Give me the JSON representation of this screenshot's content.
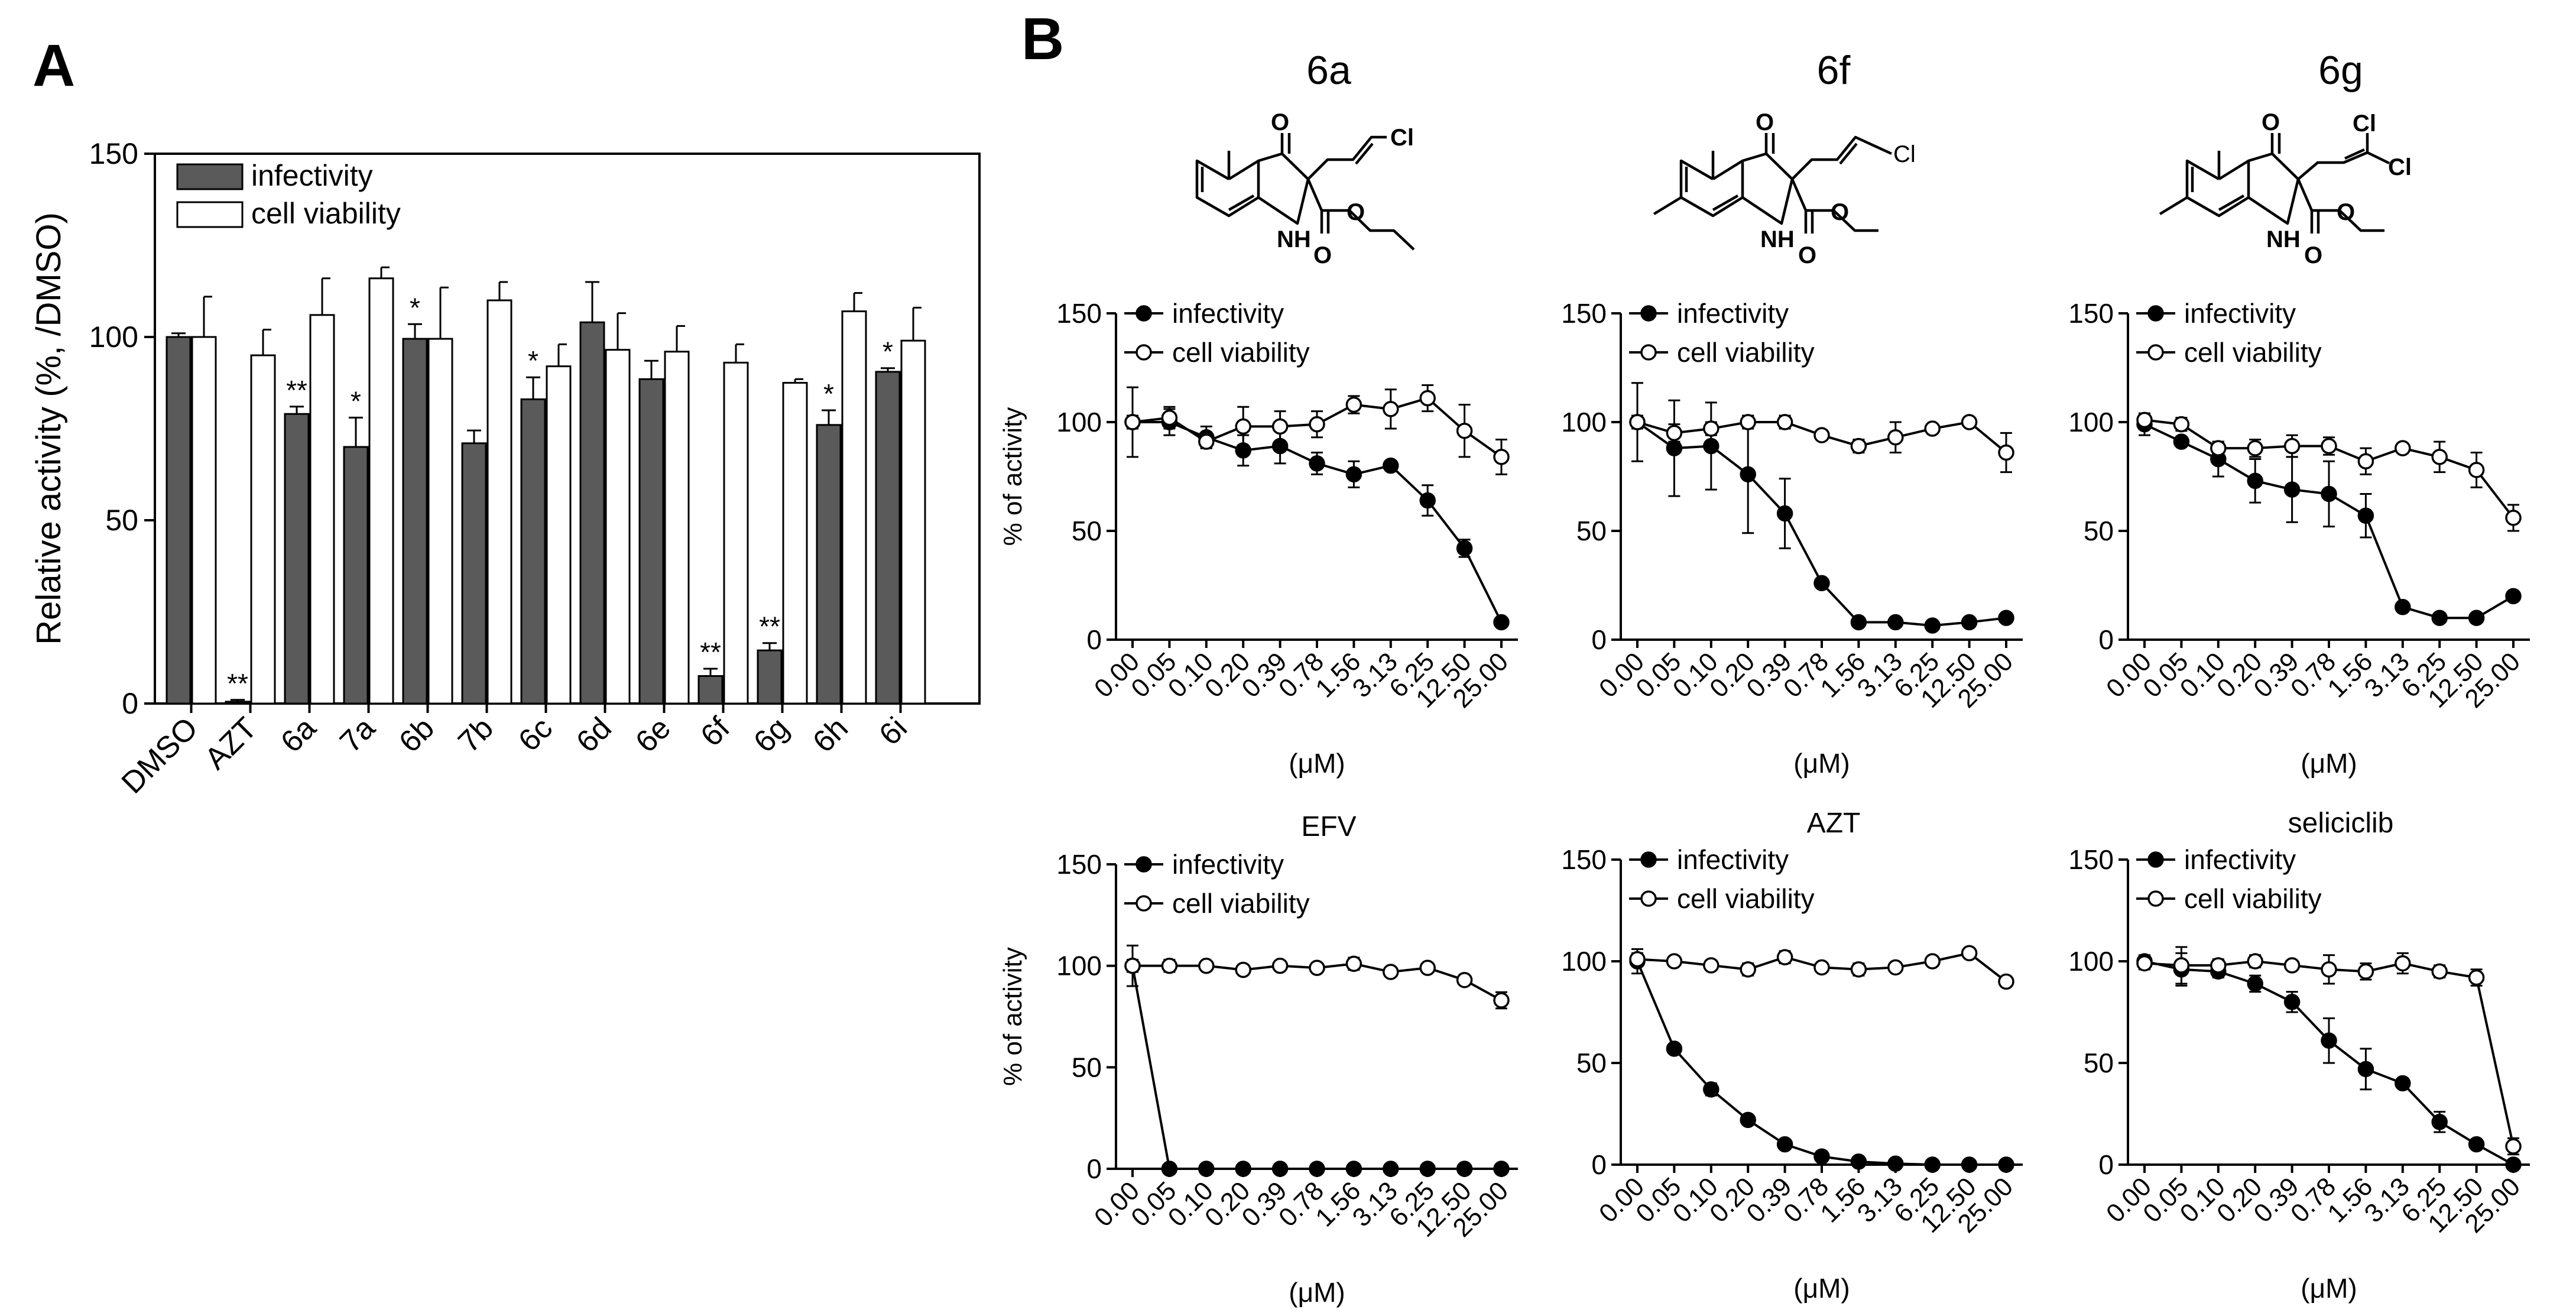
{
  "colors": {
    "infectivity_bar": "#5a5a5a",
    "viability_bar": "#ffffff",
    "line": "#000000",
    "background": "#ffffff"
  },
  "panels": {
    "a": "A",
    "b": "B"
  },
  "chart_data": [
    {
      "id": "A",
      "type": "bar",
      "title": "",
      "xlabel": "",
      "ylabel": "Relative activity (%, /DMSO)",
      "ylim": [
        0,
        150
      ],
      "yticks": [
        "0",
        "50",
        "100",
        "150"
      ],
      "legend_position": "top-left",
      "categories": [
        "DMSO",
        "AZT",
        "6a",
        "7a",
        "6b",
        "7b",
        "6c",
        "6d",
        "6e",
        "6f",
        "6g",
        "6h",
        "6i"
      ],
      "series": [
        {
          "name": "infectivity",
          "values": [
            100,
            0.5,
            79,
            70,
            99.5,
            71,
            83,
            104,
            88.5,
            7.5,
            14.5,
            76,
            90.5
          ],
          "errors": [
            1,
            0.5,
            2,
            8,
            4,
            3.5,
            6,
            11,
            5,
            2,
            2,
            4,
            1
          ],
          "significance": [
            "",
            "**",
            "**",
            "*",
            "*",
            "",
            "*",
            "",
            "",
            "**",
            "**",
            "*",
            "*"
          ]
        },
        {
          "name": "cell viability",
          "values": [
            100,
            95,
            106,
            116,
            99.5,
            110,
            92,
            96.5,
            96,
            93,
            87.5,
            107,
            99
          ],
          "errors": [
            11,
            7,
            10,
            3,
            14,
            5,
            6,
            10,
            7,
            5,
            1,
            5,
            9
          ]
        }
      ]
    },
    {
      "id": "6a",
      "type": "line",
      "title": "6a",
      "ylabel": "% of activity",
      "xlabel": "(μM)",
      "ylim": [
        0,
        150
      ],
      "yticks": [
        "0",
        "50",
        "100",
        "150"
      ],
      "x": [
        "0.00",
        "0.05",
        "0.10",
        "0.20",
        "0.39",
        "0.78",
        "1.56",
        "3.13",
        "6.25",
        "12.50",
        "25.00"
      ],
      "series": [
        {
          "name": "infectivity",
          "marker": "filled",
          "values": [
            100,
            100,
            93,
            87,
            89,
            81,
            76,
            80,
            64,
            42,
            8
          ],
          "errors": [
            16,
            6,
            5,
            7,
            8,
            5,
            6,
            2,
            7,
            4,
            1
          ]
        },
        {
          "name": "cell viability",
          "marker": "open",
          "values": [
            100,
            102,
            91,
            98,
            98,
            99,
            108,
            106,
            111,
            96,
            84
          ],
          "errors": [
            3,
            5,
            3,
            9,
            7,
            6,
            4,
            9,
            6,
            12,
            8
          ]
        }
      ]
    },
    {
      "id": "6f",
      "type": "line",
      "title": "6f",
      "ylabel": "",
      "xlabel": "(μM)",
      "ylim": [
        0,
        150
      ],
      "yticks": [
        "0",
        "50",
        "100",
        "150"
      ],
      "x": [
        "0.00",
        "0.05",
        "0.10",
        "0.20",
        "0.39",
        "0.78",
        "1.56",
        "3.13",
        "6.25",
        "12.50",
        "25.00"
      ],
      "series": [
        {
          "name": "infectivity",
          "marker": "filled",
          "values": [
            100,
            88,
            89,
            76,
            58,
            26,
            8,
            8,
            6.5,
            8,
            10
          ],
          "errors": [
            18,
            22,
            20,
            27,
            16,
            2,
            1,
            1,
            1,
            1,
            1
          ]
        },
        {
          "name": "cell viability",
          "marker": "open",
          "values": [
            100,
            95,
            97,
            100,
            100,
            94,
            89,
            93,
            97,
            100,
            86
          ],
          "errors": [
            3,
            4,
            3,
            3,
            3,
            2,
            3,
            7,
            2,
            1,
            9
          ]
        }
      ]
    },
    {
      "id": "6g",
      "type": "line",
      "title": "6g",
      "ylabel": "",
      "xlabel": "(μM)",
      "ylim": [
        0,
        150
      ],
      "yticks": [
        "0",
        "50",
        "100",
        "150"
      ],
      "x": [
        "0.00",
        "0.05",
        "0.10",
        "0.20",
        "0.39",
        "0.78",
        "1.56",
        "3.13",
        "6.25",
        "12.50",
        "25.00"
      ],
      "series": [
        {
          "name": "infectivity",
          "marker": "filled",
          "values": [
            99,
            91,
            83,
            73,
            69,
            67,
            57,
            15,
            10,
            10,
            20
          ],
          "errors": [
            5,
            2,
            8,
            10,
            15,
            15,
            10,
            1,
            1,
            1,
            2
          ]
        },
        {
          "name": "cell viability",
          "marker": "open",
          "values": [
            101,
            99,
            88,
            88,
            89,
            89,
            82,
            88,
            84,
            78,
            56
          ],
          "errors": [
            3,
            3,
            3,
            4,
            5,
            4,
            6,
            2,
            7,
            8,
            6
          ]
        }
      ]
    },
    {
      "id": "EFV",
      "type": "line",
      "title": "EFV",
      "ylabel": "% of activity",
      "xlabel": "(μM)",
      "ylim": [
        0,
        150
      ],
      "yticks": [
        "0",
        "50",
        "100",
        "150"
      ],
      "x": [
        "0.00",
        "0.05",
        "0.10",
        "0.20",
        "0.39",
        "0.78",
        "1.56",
        "3.13",
        "6.25",
        "12.50",
        "25.00"
      ],
      "series": [
        {
          "name": "infectivity",
          "marker": "filled",
          "values": [
            100,
            0,
            0,
            0,
            0,
            0,
            0,
            0,
            0,
            0,
            0
          ],
          "errors": [
            10,
            0,
            0,
            0,
            0,
            0,
            0,
            0,
            0,
            0,
            0
          ]
        },
        {
          "name": "cell viability",
          "marker": "open",
          "values": [
            100,
            100,
            100,
            98,
            100,
            99,
            101,
            97,
            99,
            93,
            83
          ],
          "errors": [
            3,
            3,
            1,
            1,
            1,
            1,
            3,
            1,
            1,
            1,
            4
          ]
        }
      ]
    },
    {
      "id": "AZT",
      "type": "line",
      "title": "AZT",
      "ylabel": "",
      "xlabel": "(μM)",
      "ylim": [
        0,
        150
      ],
      "yticks": [
        "0",
        "50",
        "100",
        "150"
      ],
      "x": [
        "0.00",
        "0.05",
        "0.10",
        "0.20",
        "0.39",
        "0.78",
        "1.56",
        "3.13",
        "6.25",
        "12.50",
        "25.00"
      ],
      "series": [
        {
          "name": "infectivity",
          "marker": "filled",
          "values": [
            100,
            57,
            37,
            22,
            10,
            4,
            1.5,
            0.5,
            0,
            0,
            0
          ],
          "errors": [
            6,
            1,
            3,
            1,
            1,
            1,
            1,
            0,
            0,
            0,
            0
          ]
        },
        {
          "name": "cell viability",
          "marker": "open",
          "values": [
            101,
            100,
            98,
            96,
            102,
            97,
            96,
            97,
            100,
            104,
            90
          ],
          "errors": [
            3,
            1,
            1,
            3,
            3,
            1,
            3,
            1,
            1,
            1,
            1
          ]
        }
      ]
    },
    {
      "id": "seliciclib",
      "type": "line",
      "title": "seliciclib",
      "ylabel": "",
      "xlabel": "(μM)",
      "ylim": [
        0,
        150
      ],
      "yticks": [
        "0",
        "50",
        "100",
        "150"
      ],
      "x": [
        "0.00",
        "0.05",
        "0.10",
        "0.20",
        "0.39",
        "0.78",
        "1.56",
        "3.13",
        "6.25",
        "12.50",
        "25.00"
      ],
      "series": [
        {
          "name": "infectivity",
          "marker": "filled",
          "values": [
            100,
            96,
            95,
            89,
            80,
            61,
            47,
            40,
            21,
            10,
            0
          ],
          "errors": [
            3,
            8,
            3,
            4,
            5,
            11,
            10,
            1,
            5,
            1,
            0
          ]
        },
        {
          "name": "cell viability",
          "marker": "open",
          "values": [
            99,
            98,
            98,
            100,
            98,
            96,
            95,
            99,
            95,
            92,
            9
          ],
          "errors": [
            3,
            9,
            3,
            3,
            1,
            7,
            4,
            5,
            3,
            4,
            4
          ]
        }
      ]
    }
  ],
  "structures": [
    {
      "id": "6a",
      "labels": {
        "carbonyl_o": "O",
        "chloro": "Cl",
        "nh": "NH",
        "ester_o": "O"
      }
    },
    {
      "id": "6f",
      "labels": {
        "carbonyl_o": "O",
        "chloro": "Cl",
        "nh": "NH",
        "ester_o": "O"
      }
    },
    {
      "id": "6g",
      "labels": {
        "carbonyl_o": "O",
        "chloro_1": "Cl",
        "chloro_2": "Cl",
        "nh": "NH",
        "ester_o": "O"
      }
    }
  ]
}
